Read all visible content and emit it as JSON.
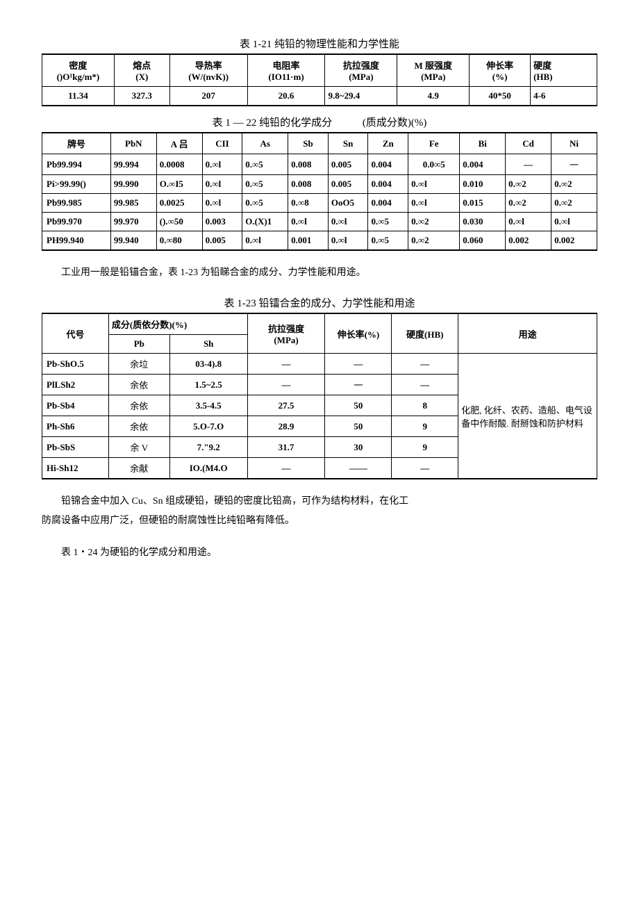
{
  "t21": {
    "caption": "表 1-21 纯铅的物理性能和力学性能",
    "headers": [
      "密度\n()O¹kg/m*)",
      "熔点\n(X)",
      "导热率\n(W/(nvK))",
      "电阻率\n(IO11·m)",
      "抗拉强度\n(MPa)",
      "M 服强度\n(MPa)",
      "伸长率\n(%)",
      "硬度\n(HB)"
    ],
    "row": [
      "11.34",
      "327.3",
      "207",
      "20.6",
      "9.8~29.4",
      "4.9",
      "40*50",
      "4-6"
    ]
  },
  "t22": {
    "caption": "表 1 — 22 纯铅的化学成分",
    "caption_ann": "(质成分数)(%)",
    "headers": [
      "牌号",
      "PbN",
      "A 吕",
      "CII",
      "As",
      "Sb",
      "Sn",
      "Zn",
      "Fe",
      "Bi",
      "Cd",
      "Ni"
    ],
    "rows": [
      [
        "Pb99.994",
        "99.994",
        "0.0008",
        "0.∞l",
        "0.∞5",
        "0.008",
        "0.005",
        "0.004",
        "0.0∞5",
        "0.004",
        "—",
        "一"
      ],
      [
        "Pi>99.99()",
        "99.990",
        "O.∞I5",
        "0.∞l",
        "0.∞5",
        "0.008",
        "0.005",
        "0.004",
        "0.∞l",
        "0.010",
        "0.∞2",
        "0.∞2"
      ],
      [
        "Pb99.985",
        "99.985",
        "0.0025",
        "0.∞l",
        "0.∞5",
        "0.∞8",
        "OoO5",
        "0.004",
        "0.∞l",
        "0.015",
        "0.∞2",
        "0.∞2"
      ],
      [
        "Pb99.970",
        "99.970",
        "().∞50",
        "0.003",
        "O.(X)1",
        "0.∞l",
        "0.∞l",
        "0.∞5",
        "0.∞2",
        "0.030",
        "0.∞l",
        "0.∞l"
      ],
      [
        "PH99.940",
        "99.940",
        "0.∞80",
        "0.005",
        "0.∞l",
        "0.001",
        "0.∞l",
        "0.∞5",
        "0.∞2",
        "0.060",
        "0.002",
        "0.002"
      ]
    ]
  },
  "para1": "工业用一般是铅锚合金，表 1-23 为铅睇合金的成分、力学性能和用途。",
  "t23": {
    "caption": "表 1-23 铅镭合金的成分、力学性能和用途",
    "h_daihao": "代号",
    "h_chengfen": "成分(质依分数)(%)",
    "h_pb": "Pb",
    "h_sh": "Sh",
    "h_kl": "抗拉强度\n(MPa)",
    "h_scl": "伸长率(%)",
    "h_yd": "硬度(HB)",
    "h_yt": "用途",
    "rows": [
      [
        "Pb-ShO.5",
        "余垃",
        "03-4).8",
        "—",
        "—",
        "—"
      ],
      [
        "PlLSh2",
        "余依",
        "1.5~2.5",
        "—",
        "一",
        "—"
      ],
      [
        "Pb-Sb4",
        "余依",
        "3.5-4.5",
        "27.5",
        "50",
        "8"
      ],
      [
        "Ph-Sh6",
        "余依",
        "5.O-7.O",
        "28.9",
        "50",
        "9"
      ],
      [
        "Pb-SbS",
        "余 V",
        "7.\"9.2",
        "31.7",
        "30",
        "9"
      ],
      [
        "Hi-Sh12",
        "余献",
        "IO.(M4.O",
        "—",
        "——",
        "—"
      ]
    ],
    "use_text": "化肥, 化纤、农药、造船、电气设备中作耐酸. 耐掰蚀和防护材料"
  },
  "para2": "铅锦合金中加入 Cu、Sn 组成硬铅，硬铅的密度比铅高，可作为结构材料，在化工",
  "para3": "防腐设备中应用广泛，但硬铅的耐腐蚀性比纯铅略有降低。",
  "para4": "表 1・24 为硬铅的化学成分和用途。"
}
